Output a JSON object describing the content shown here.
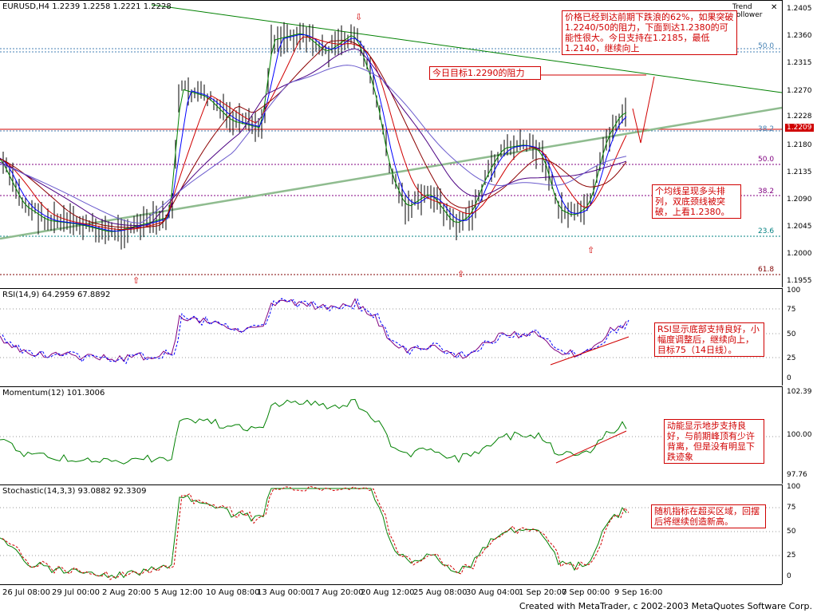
{
  "main": {
    "title": "EURUSD,H4  1.2239 1.2258 1.2221 1.2228",
    "indicator_name": "Trend Follower",
    "close_glyph": "✕",
    "yticks": [
      "1.2405",
      "1.2360",
      "1.2315",
      "1.2270",
      "1.2228",
      "1.2209",
      "1.2180",
      "1.2135",
      "1.2090",
      "1.2045",
      "1.2000",
      "1.1955"
    ],
    "price_current": "1.2228",
    "price_line": "1.2209",
    "fib_labels": [
      "50.0",
      "38.2",
      "50.0",
      "38.2",
      "23.6",
      "61.8"
    ],
    "note1": "价格已经到达前期下跌浪的62%，如果突破1.2240/50的阻力，下面到达1.2380的可能性很大。今日支持在1.2185，最低1.2140，继续向上",
    "note2": "今日目标1.2290的阻力",
    "note3": "个均线呈现多头排列，双底颈线被突破，上看1.2380。"
  },
  "rsi": {
    "title": "RSI(14,9) 64.2959 67.8892",
    "yticks": [
      "100",
      "75",
      "50",
      "25",
      "0"
    ],
    "note": "RSI显示底部支持良好，小幅度调整后，继续向上，目标75（14日线）。"
  },
  "momentum": {
    "title": "Momentum(12) 101.3006",
    "yticks": [
      "102.39",
      "100.00",
      "97.76"
    ],
    "note": "动能显示地步支持良好，与前期峰顶有少许背离，但是没有明显下跌迹象"
  },
  "stoch": {
    "title": "Stochastic(14,3,3) 93.0882 92.3309",
    "yticks": [
      "100",
      "75",
      "50",
      "25",
      "0"
    ],
    "note": "随机指标在超买区域，回摆后将继续创造新高。"
  },
  "xaxis": [
    "26 Jul 08:00",
    "29 Jul 00:00",
    "2 Aug 20:00",
    "5 Aug 12:00",
    "10 Aug 08:00",
    "13 Aug 00:00",
    "17 Aug 20:00",
    "20 Aug 12:00",
    "25 Aug 08:00",
    "30 Aug 04:00",
    "1 Sep 20:00",
    "7 Sep 00:00",
    "9 Sep 16:00"
  ],
  "footer": "Created with MetaTrader, c 2002-2003 MetaQuotes Software Corp.",
  "colors": {
    "accent": "#d00000",
    "ma_green": "#008000",
    "ma_blue": "#0000ff",
    "trend_green": "#008000",
    "trend_light": "#8fbc8f"
  }
}
